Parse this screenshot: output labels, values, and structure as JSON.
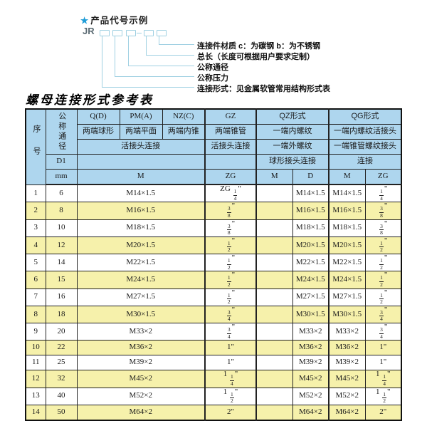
{
  "colors": {
    "header_bg": "#aed6ee",
    "row_alt_bg": "#f6f1ab",
    "line_blue": "#9fd0e2",
    "star_blue": "#1e9cd7"
  },
  "diagram": {
    "star": "★",
    "title": "产品代号示例",
    "prefix": "JR",
    "labels": [
      "连接件材质  c：为碳钢  b：为不锈钢",
      "总长（长度可根据用户要求定制）",
      "公称通径",
      "公称压力",
      "连接形式：见金属软管常用结构形式表"
    ]
  },
  "table": {
    "title": "螺母连接形式参考表",
    "header": {
      "seq": "序号",
      "dn": "公称通径",
      "d1": "D1",
      "mm": "mm",
      "q": "Q(D)",
      "q_desc": "两端球形",
      "pm": "PM(A)",
      "pm_desc": "两端平面",
      "nz": "NZ(C)",
      "nz_desc": "两端内锥",
      "gz": "GZ",
      "gz_desc": "两端锥管",
      "gz_desc2": "活接头连接",
      "union_span": "活接头连接",
      "qz": "QZ形式",
      "qz_line1": "一端内螺纹",
      "qz_line2": "一端外螺纹",
      "qz_line3": "球形接头连接",
      "qg": "QG形式",
      "qg_line1": "一端内螺纹活接头",
      "qg_line2": "一端锥管螺纹接头",
      "qg_line3": "连接",
      "unit_m": "M",
      "unit_zg": "ZG",
      "unit_qz_m": "M",
      "unit_qz_d": "D",
      "unit_qg_m": "M",
      "unit_qg_zg": "ZG"
    },
    "rows": [
      {
        "seq": "1",
        "dn": "6",
        "m": "M14×1.5",
        "gz": "ZG 1/4\"",
        "qz_m": "",
        "qz_d": "M14×1.5",
        "qg_m": "M14×1.5",
        "qg_zg": "1/4\""
      },
      {
        "seq": "2",
        "dn": "8",
        "m": "M16×1.5",
        "gz": "3/8\"",
        "qz_m": "",
        "qz_d": "M16×1.5",
        "qg_m": "M16×1.5",
        "qg_zg": "3/8\""
      },
      {
        "seq": "3",
        "dn": "10",
        "m": "M18×1.5",
        "gz": "3/8\"",
        "qz_m": "",
        "qz_d": "M18×1.5",
        "qg_m": "M18×1.5",
        "qg_zg": "3/8\""
      },
      {
        "seq": "4",
        "dn": "12",
        "m": "M20×1.5",
        "gz": "1/2\"",
        "qz_m": "",
        "qz_d": "M20×1.5",
        "qg_m": "M20×1.5",
        "qg_zg": "1/2\""
      },
      {
        "seq": "5",
        "dn": "14",
        "m": "M22×1.5",
        "gz": "1/2\"",
        "qz_m": "",
        "qz_d": "M22×1.5",
        "qg_m": "M22×1.5",
        "qg_zg": "1/2\""
      },
      {
        "seq": "6",
        "dn": "15",
        "m": "M24×1.5",
        "gz": "1/2\"",
        "qz_m": "",
        "qz_d": "M24×1.5",
        "qg_m": "M24×1.5",
        "qg_zg": "1/2\""
      },
      {
        "seq": "7",
        "dn": "16",
        "m": "M27×1.5",
        "gz": "1/2\"",
        "qz_m": "",
        "qz_d": "M27×1.5",
        "qg_m": "M27×1.5",
        "qg_zg": "1/2\""
      },
      {
        "seq": "8",
        "dn": "18",
        "m": "M30×1.5",
        "gz": "3/4\"",
        "qz_m": "",
        "qz_d": "M30×1.5",
        "qg_m": "M30×1.5",
        "qg_zg": "3/4\""
      },
      {
        "seq": "9",
        "dn": "20",
        "m": "M33×2",
        "gz": "3/4\"",
        "qz_m": "",
        "qz_d": "M33×2",
        "qg_m": "M33×2",
        "qg_zg": "3/4\""
      },
      {
        "seq": "10",
        "dn": "22",
        "m": "M36×2",
        "gz": "1\"",
        "qz_m": "",
        "qz_d": "M36×2",
        "qg_m": "M36×2",
        "qg_zg": "1\""
      },
      {
        "seq": "11",
        "dn": "25",
        "m": "M39×2",
        "gz": "1\"",
        "qz_m": "",
        "qz_d": "M39×2",
        "qg_m": "M39×2",
        "qg_zg": "1\""
      },
      {
        "seq": "12",
        "dn": "32",
        "m": "M45×2",
        "gz": "1 1/4\"",
        "qz_m": "",
        "qz_d": "M45×2",
        "qg_m": "M45×2",
        "qg_zg": "1 1/4\""
      },
      {
        "seq": "13",
        "dn": "40",
        "m": "M52×2",
        "gz": "1 1/2\"",
        "qz_m": "",
        "qz_d": "M52×2",
        "qg_m": "M52×2",
        "qg_zg": "1 1/2\""
      },
      {
        "seq": "14",
        "dn": "50",
        "m": "M64×2",
        "gz": "2\"",
        "qz_m": "",
        "qz_d": "M64×2",
        "qg_m": "M64×2",
        "qg_zg": "2\""
      }
    ]
  }
}
